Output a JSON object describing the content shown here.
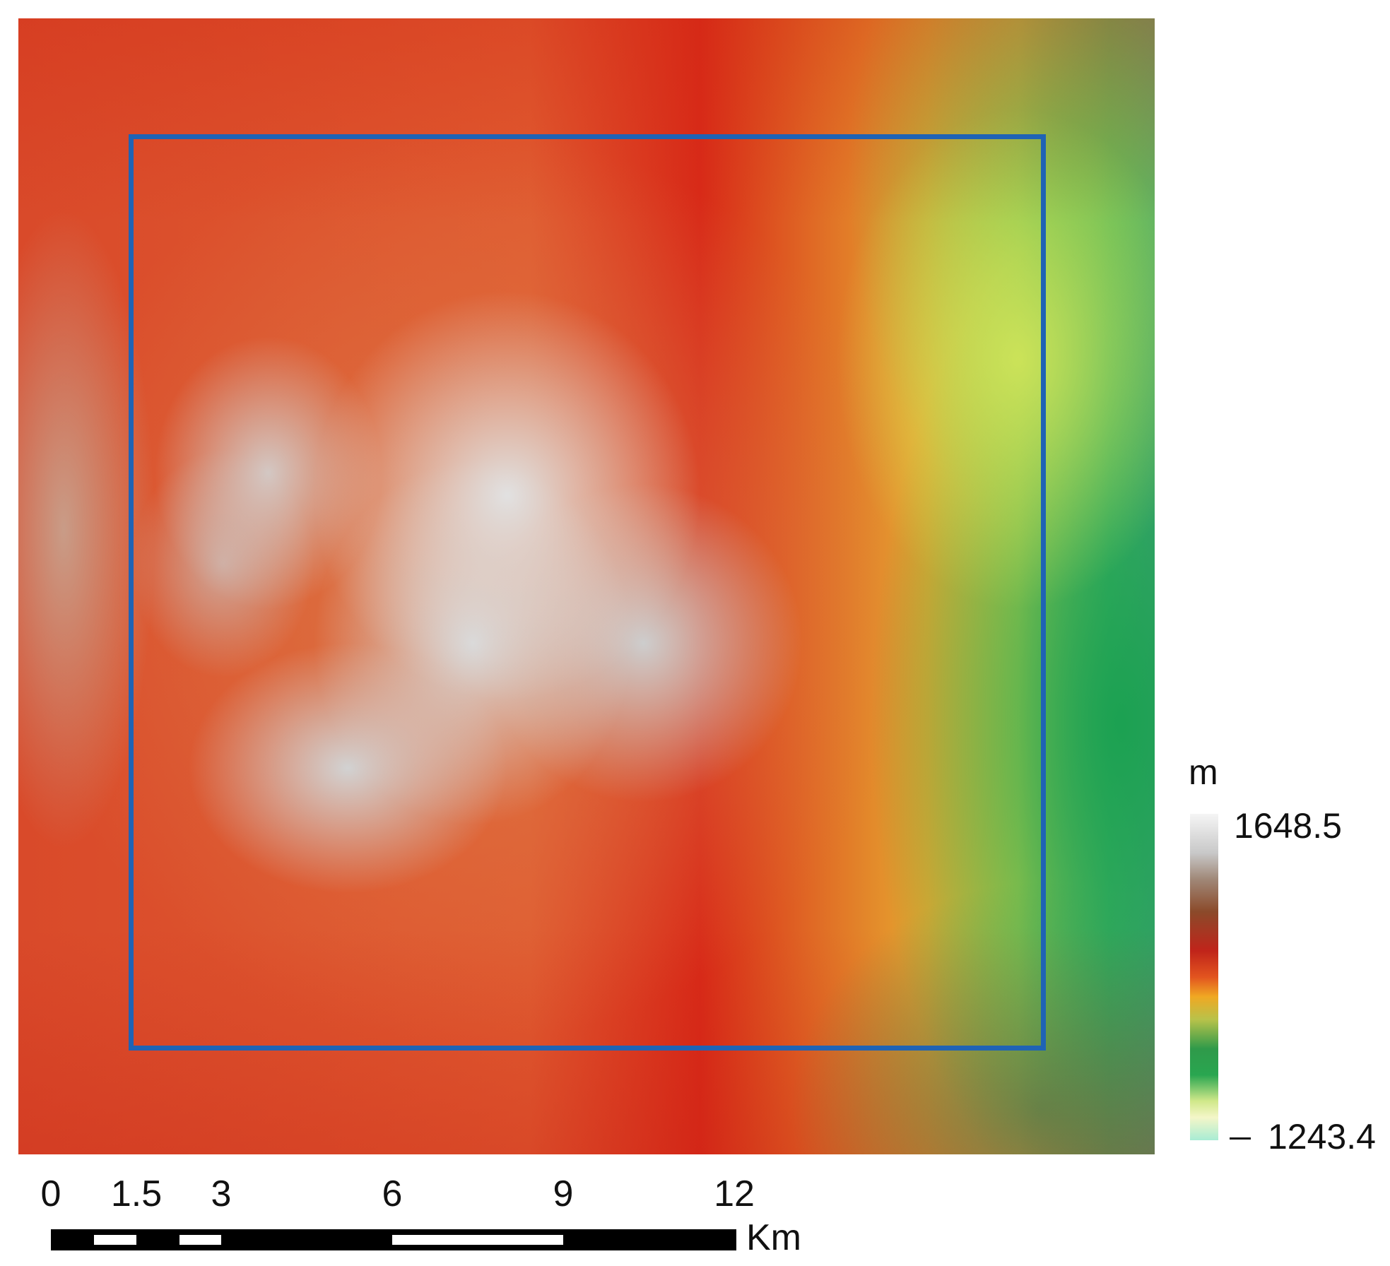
{
  "map": {
    "legend_unit": "m",
    "legend_max": "1648.5",
    "legend_min": "1243.4",
    "scale_labels": [
      "0",
      "1.5",
      "3",
      "6",
      "9",
      "12"
    ],
    "scale_unit": "Km",
    "extent_box_color": "#1f63b5"
  }
}
